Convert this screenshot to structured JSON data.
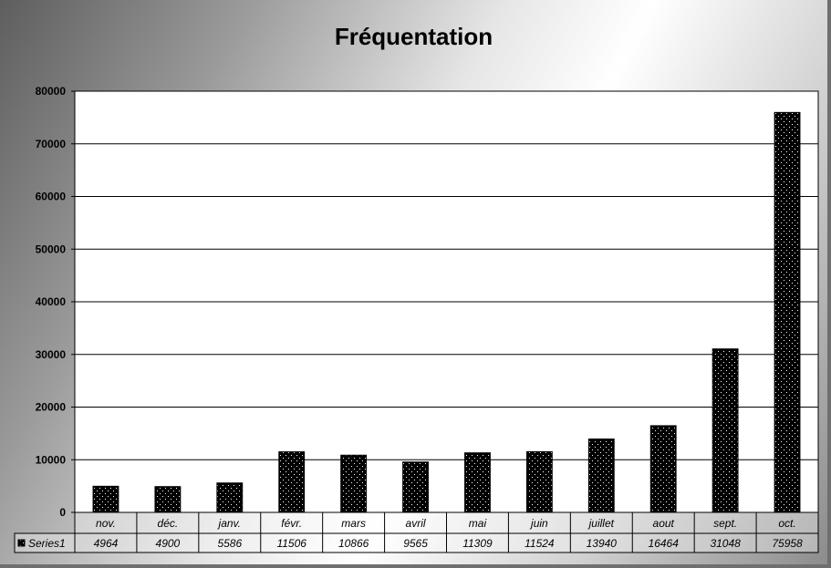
{
  "chart_data": {
    "type": "bar",
    "title": "Fréquentation",
    "categories": [
      "nov.",
      "déc.",
      "janv.",
      "févr.",
      "mars",
      "avril",
      "mai",
      "juin",
      "juillet",
      "aout",
      "sept.",
      "oct."
    ],
    "series": [
      {
        "name": "Series1",
        "values": [
          4964,
          4900,
          5586,
          11506,
          10866,
          9565,
          11309,
          11524,
          13940,
          16464,
          31048,
          75958
        ]
      }
    ],
    "ylim": [
      0,
      80000
    ],
    "yticks": [
      0,
      10000,
      20000,
      30000,
      40000,
      50000,
      60000,
      70000,
      80000
    ],
    "grid": true,
    "legend": "data-table-left",
    "data_table": true,
    "bar_color": "#000000",
    "bar_pattern": "white-dotted"
  }
}
